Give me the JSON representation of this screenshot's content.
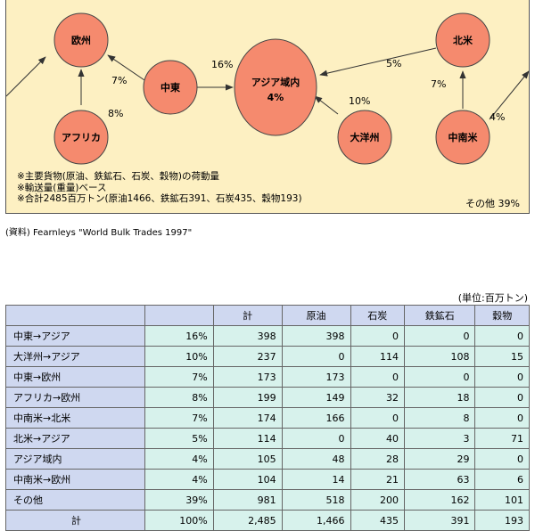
{
  "diagram": {
    "nodes": {
      "europe": "欧州",
      "africa": "アフリカ",
      "middle_east": "中東",
      "asia_intra_line1": "アジア域内",
      "asia_intra_line2": "4%",
      "oceania": "大洋州",
      "north_america": "北米",
      "latin_america": "中南米"
    },
    "flow_labels": {
      "middle_east_to_asia": "16%",
      "middle_east_to_europe": "7%",
      "africa_to_europe": "8%",
      "oceania_to_asia": "10%",
      "north_america_to_asia": "5%",
      "latin_america_to_north_america": "7%",
      "latin_america_to_europe": "4%"
    },
    "notes": [
      "※主要貨物(原油、鉄鉱石、石炭、穀物)の荷動量",
      "※輸送量(重量)ベース",
      "※合計2485百万トン(原油1466、鉄鉱石391、石炭435、穀物193)"
    ],
    "other_label": "その他 39%"
  },
  "source": "(資料) Fearnleys \"World Bulk Trades 1997\"",
  "unit": "(単位:百万トン)",
  "table": {
    "headers": [
      "",
      "",
      "計",
      "原油",
      "石炭",
      "鉄鉱石",
      "穀物"
    ],
    "rows": [
      [
        "中東→アジア",
        "16%",
        "398",
        "398",
        "0",
        "0",
        "0"
      ],
      [
        "大洋州→アジア",
        "10%",
        "237",
        "0",
        "114",
        "108",
        "15"
      ],
      [
        "中東→欧州",
        "7%",
        "173",
        "173",
        "0",
        "0",
        "0"
      ],
      [
        "アフリカ→欧州",
        "8%",
        "199",
        "149",
        "32",
        "18",
        "0"
      ],
      [
        "中南米→北米",
        "7%",
        "174",
        "166",
        "0",
        "8",
        "0"
      ],
      [
        "北米→アジア",
        "5%",
        "114",
        "0",
        "40",
        "3",
        "71"
      ],
      [
        "アジア域内",
        "4%",
        "105",
        "48",
        "28",
        "29",
        "0"
      ],
      [
        "中南米→欧州",
        "4%",
        "104",
        "14",
        "21",
        "63",
        "6"
      ],
      [
        "その他",
        "39%",
        "981",
        "518",
        "200",
        "162",
        "101"
      ]
    ],
    "total": [
      "計",
      "100%",
      "2,485",
      "1,466",
      "435",
      "391",
      "193"
    ]
  }
}
